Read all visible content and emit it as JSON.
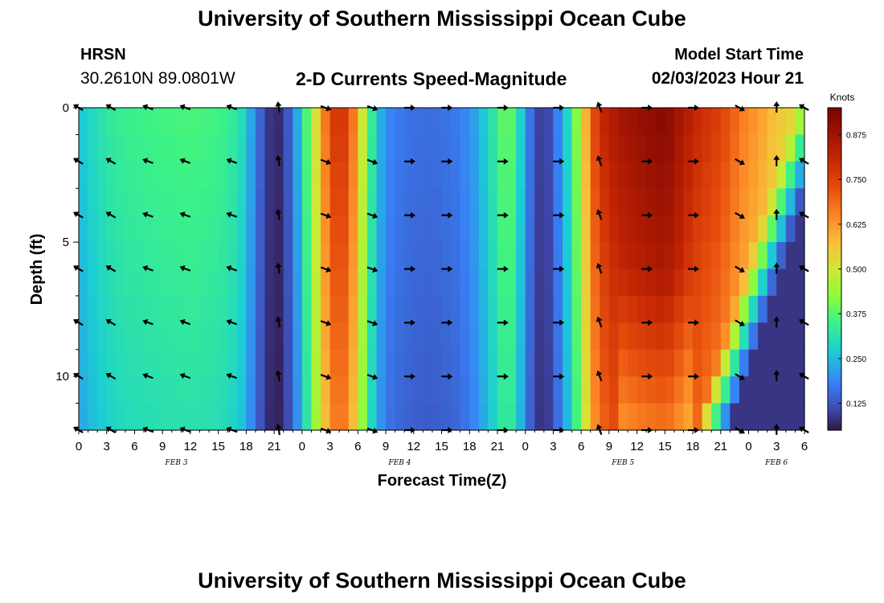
{
  "header": {
    "main_title": "University of Southern Mississippi Ocean Cube",
    "station_name": "HRSN",
    "station_coords": "30.2610N  89.0801W",
    "plot_title": "2-D Currents Speed-Magnitude",
    "start_label": "Model Start Time",
    "start_value": "02/03/2023 Hour 21"
  },
  "footer": {
    "title": "University of Southern Mississippi Ocean Cube"
  },
  "chart_data": {
    "type": "heatmap",
    "title": "2-D Currents Speed-Magnitude",
    "xlabel": "Forecast Time(Z)",
    "ylabel": "Depth (ft)",
    "x_unit": "hours since Feb 3 00Z",
    "xlim": [
      0,
      78
    ],
    "ylim": [
      0,
      12
    ],
    "y_ticks": [
      0,
      5,
      10
    ],
    "x_tick_labels": [
      "0",
      "3",
      "6",
      "9",
      "12",
      "15",
      "18",
      "21",
      "0",
      "3",
      "6",
      "9",
      "12",
      "15",
      "18",
      "21",
      "0",
      "3",
      "6",
      "9",
      "12",
      "15",
      "18",
      "21",
      "0",
      "3",
      "6"
    ],
    "date_labels": [
      {
        "text": "FEB 3",
        "hour": 10.5
      },
      {
        "text": "FEB 4",
        "hour": 34.5
      },
      {
        "text": "FEB 5",
        "hour": 58.5
      },
      {
        "text": "FEB 6",
        "hour": 75.0
      }
    ],
    "colorbar": {
      "label": "Knots",
      "min": 0.05,
      "max": 0.95,
      "tick_labels": [
        "0.125",
        "0.250",
        "0.375",
        "0.500",
        "0.625",
        "0.750",
        "0.875"
      ],
      "tick_values": [
        0.125,
        0.25,
        0.375,
        0.5,
        0.625,
        0.75,
        0.875
      ]
    },
    "time_speed_profile": {
      "hours": [
        0,
        1,
        2,
        3,
        5,
        8,
        12,
        15,
        17,
        18,
        19,
        20,
        21,
        22,
        23,
        24,
        25,
        26,
        27,
        28,
        29,
        30,
        31,
        32,
        33,
        35,
        38,
        41,
        43,
        44,
        45,
        46,
        47,
        48,
        49,
        50,
        51,
        52,
        53,
        54,
        55,
        56,
        57,
        58,
        60,
        63,
        64,
        65,
        66,
        67,
        68,
        69,
        70,
        71,
        72,
        73,
        74,
        75,
        76,
        77,
        78
      ],
      "surface_knots": [
        0.26,
        0.29,
        0.31,
        0.33,
        0.35,
        0.36,
        0.37,
        0.36,
        0.33,
        0.28,
        0.18,
        0.12,
        0.06,
        0.1,
        0.17,
        0.3,
        0.45,
        0.6,
        0.75,
        0.8,
        0.75,
        0.6,
        0.4,
        0.28,
        0.2,
        0.17,
        0.16,
        0.18,
        0.24,
        0.3,
        0.35,
        0.42,
        0.35,
        0.22,
        0.12,
        0.09,
        0.14,
        0.24,
        0.34,
        0.5,
        0.7,
        0.8,
        0.84,
        0.87,
        0.9,
        0.93,
        0.9,
        0.86,
        0.82,
        0.8,
        0.78,
        0.76,
        0.72,
        0.68,
        0.65,
        0.63,
        0.6,
        0.57,
        0.55,
        0.53,
        0.5
      ]
    },
    "vector_rows_depth_ft": [
      0,
      2,
      4,
      6,
      8,
      10,
      12
    ],
    "vector_columns_hour": [
      0,
      3.5,
      7.5,
      11.5,
      16.5,
      21.5,
      26.5,
      31.5,
      35.5,
      39.5,
      45.5,
      51.5,
      56,
      61,
      66,
      71,
      75,
      78
    ],
    "vector_direction_deg": [
      210,
      210,
      200,
      200,
      200,
      260,
      20,
      20,
      0,
      0,
      0,
      0,
      250,
      0,
      0,
      30,
      270,
      210
    ]
  }
}
